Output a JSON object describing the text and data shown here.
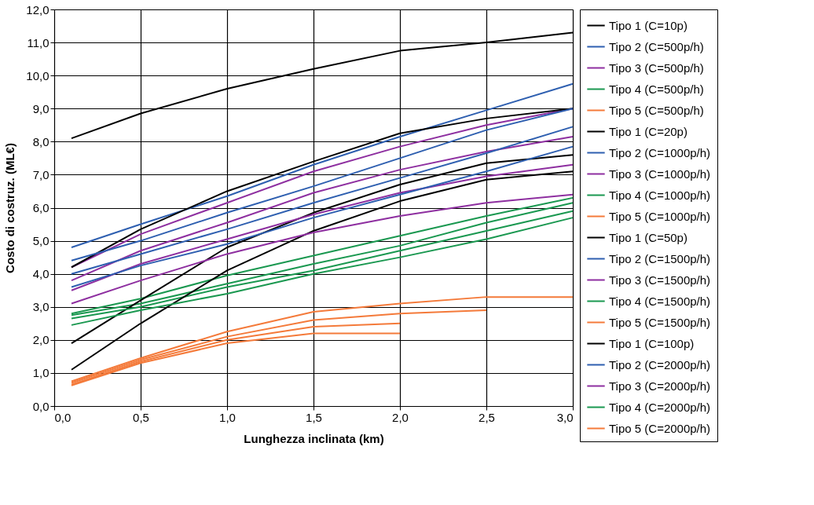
{
  "chart_data": {
    "type": "line",
    "xlabel": "Lunghezza inclinata (km)",
    "ylabel": "Costo di costruz. (ML€)",
    "x": [
      0.1,
      0.5,
      1.0,
      1.5,
      2.0,
      2.5,
      3.0
    ],
    "xlim": [
      0,
      3
    ],
    "ylim": [
      0,
      12
    ],
    "xticks": [
      {
        "value": 0,
        "label": "0,0"
      },
      {
        "value": 0.5,
        "label": "0,5"
      },
      {
        "value": 1,
        "label": "1,0"
      },
      {
        "value": 1.5,
        "label": "1,5"
      },
      {
        "value": 2,
        "label": "2,0"
      },
      {
        "value": 2.5,
        "label": "2,5"
      },
      {
        "value": 3,
        "label": "3,0"
      }
    ],
    "yticks": [
      {
        "value": 0,
        "label": "0,0"
      },
      {
        "value": 1,
        "label": "1,0"
      },
      {
        "value": 2,
        "label": "2,0"
      },
      {
        "value": 3,
        "label": "3,0"
      },
      {
        "value": 4,
        "label": "4,0"
      },
      {
        "value": 5,
        "label": "5,0"
      },
      {
        "value": 6,
        "label": "6,0"
      },
      {
        "value": 7,
        "label": "7,0"
      },
      {
        "value": 8,
        "label": "8,0"
      },
      {
        "value": 9,
        "label": "9,0"
      },
      {
        "value": 10,
        "label": "10,0"
      },
      {
        "value": 11,
        "label": "11,0"
      },
      {
        "value": 12,
        "label": "12,0"
      }
    ],
    "grid": true,
    "legend": "right",
    "marker": "none",
    "line_style": "solid",
    "series": [
      {
        "name": "Tipo 1 (C=10p)",
        "color": "#000000",
        "values": [
          8.1,
          8.85,
          9.6,
          10.2,
          10.75,
          11.0,
          11.3
        ]
      },
      {
        "name": "Tipo 2 (C=500p/h)",
        "color": "#2e5fb0",
        "values": [
          4.8,
          5.5,
          6.35,
          7.3,
          8.15,
          8.95,
          9.75
        ]
      },
      {
        "name": "Tipo 3 (C=500p/h)",
        "color": "#8e2fa0",
        "values": [
          4.2,
          5.2,
          6.15,
          7.1,
          7.85,
          8.5,
          9.0
        ]
      },
      {
        "name": "Tipo 4 (C=500p/h)",
        "color": "#1a9850",
        "values": [
          2.8,
          3.25,
          3.95,
          4.55,
          5.15,
          5.75,
          6.3
        ]
      },
      {
        "name": "Tipo 5 (C=500p/h)",
        "color": "#f47a3a",
        "values": [
          0.75,
          1.45,
          2.25,
          2.85,
          3.1,
          3.3,
          3.3
        ]
      },
      {
        "name": "Tipo 1 (C=20p)",
        "color": "#000000",
        "values": [
          4.2,
          5.35,
          6.5,
          7.4,
          8.25,
          8.7,
          9.0
        ]
      },
      {
        "name": "Tipo 2 (C=1000p/h)",
        "color": "#2e5fb0",
        "values": [
          4.4,
          5.0,
          5.85,
          6.65,
          7.5,
          8.35,
          9.0
        ]
      },
      {
        "name": "Tipo 3 (C=1000p/h)",
        "color": "#8e2fa0",
        "values": [
          3.8,
          4.7,
          5.55,
          6.45,
          7.15,
          7.7,
          8.15
        ]
      },
      {
        "name": "Tipo 4 (C=1000p/h)",
        "color": "#1a9850",
        "values": [
          2.75,
          3.1,
          3.7,
          4.3,
          4.85,
          5.55,
          6.15
        ]
      },
      {
        "name": "Tipo 5 (C=1000p/h)",
        "color": "#f47a3a",
        "values": [
          0.7,
          1.4,
          2.1,
          2.6,
          2.8,
          2.9,
          null
        ]
      },
      {
        "name": "Tipo 1 (C=50p)",
        "color": "#000000",
        "values": [
          1.9,
          3.2,
          4.8,
          5.85,
          6.7,
          7.35,
          7.6
        ]
      },
      {
        "name": "Tipo 2 (C=1500p/h)",
        "color": "#2e5fb0",
        "values": [
          4.0,
          4.6,
          5.35,
          6.15,
          6.9,
          7.65,
          8.45
        ]
      },
      {
        "name": "Tipo 3 (C=1500p/h)",
        "color": "#8e2fa0",
        "values": [
          3.5,
          4.3,
          5.05,
          5.8,
          6.45,
          6.95,
          7.3
        ]
      },
      {
        "name": "Tipo 4 (C=1500p/h)",
        "color": "#1a9850",
        "values": [
          2.65,
          3.0,
          3.6,
          4.1,
          4.7,
          5.3,
          5.9
        ]
      },
      {
        "name": "Tipo 5 (C=1500p/h)",
        "color": "#f47a3a",
        "values": [
          0.65,
          1.35,
          2.0,
          2.4,
          2.5,
          null,
          null
        ]
      },
      {
        "name": "Tipo 1 (C=100p)",
        "color": "#000000",
        "values": [
          1.1,
          2.5,
          4.1,
          5.3,
          6.2,
          6.85,
          7.1
        ]
      },
      {
        "name": "Tipo 2 (C=2000p/h)",
        "color": "#2e5fb0",
        "values": [
          3.6,
          4.25,
          4.9,
          5.7,
          6.4,
          7.1,
          7.85
        ]
      },
      {
        "name": "Tipo 3 (C=2000p/h)",
        "color": "#8e2fa0",
        "values": [
          3.1,
          3.8,
          4.6,
          5.25,
          5.75,
          6.15,
          6.4
        ]
      },
      {
        "name": "Tipo 4 (C=2000p/h)",
        "color": "#1a9850",
        "values": [
          2.45,
          2.9,
          3.4,
          4.0,
          4.5,
          5.05,
          5.7
        ]
      },
      {
        "name": "Tipo 5 (C=2000p/h)",
        "color": "#f47a3a",
        "values": [
          0.62,
          1.3,
          1.9,
          2.2,
          2.2,
          null,
          null
        ]
      }
    ]
  }
}
